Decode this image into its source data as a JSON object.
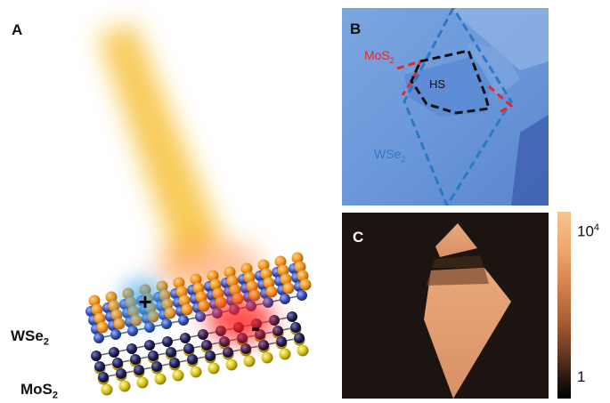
{
  "panels": {
    "a": "A",
    "b": "B",
    "c": "C"
  },
  "panelA": {
    "label_wse2": "WSe",
    "label_mos2": "MoS",
    "subscript": "2",
    "plus_sign": "+",
    "minus_sign": "-"
  },
  "panelB": {
    "label_mos2": "MoS",
    "label_wse2": "WSe",
    "label_hs": "HS",
    "subscript": "2",
    "colors": {
      "mos2": "#e8262c",
      "wse2": "#2a79c4",
      "hs": "#111111",
      "substrate": "#6b9bd8"
    }
  },
  "colorbar": {
    "max_base": "10",
    "max_exp": "4",
    "min": "1"
  }
}
